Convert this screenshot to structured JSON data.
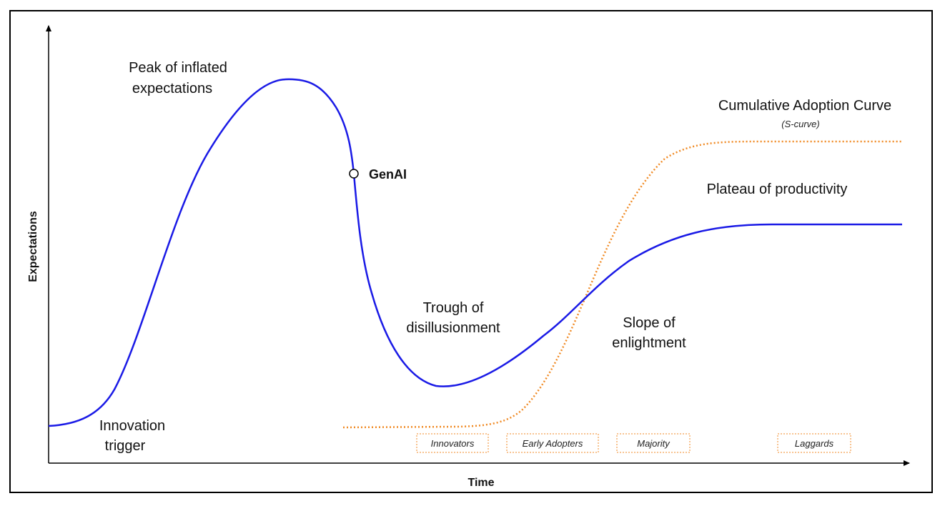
{
  "axes": {
    "y_label": "Expectations",
    "x_label": "Time"
  },
  "phases": {
    "innovation_trigger": [
      "Innovation",
      "trigger"
    ],
    "peak": [
      "Peak of inflated",
      "expectations"
    ],
    "trough": [
      "Trough of",
      "disillusionment"
    ],
    "slope": [
      "Slope of",
      "enlightment"
    ],
    "plateau": "Plateau of productivity"
  },
  "marker": {
    "label": "GenAI"
  },
  "adoption": {
    "title": "Cumulative Adoption Curve",
    "subtitle": "(S-curve)",
    "segments": [
      "Innovators",
      "Early Adopters",
      "Majority",
      "Laggards"
    ]
  },
  "colors": {
    "hype_curve": "#1a1ae6",
    "adoption_curve": "#f08a24",
    "axis": "#000000",
    "frame": "#000000"
  }
}
